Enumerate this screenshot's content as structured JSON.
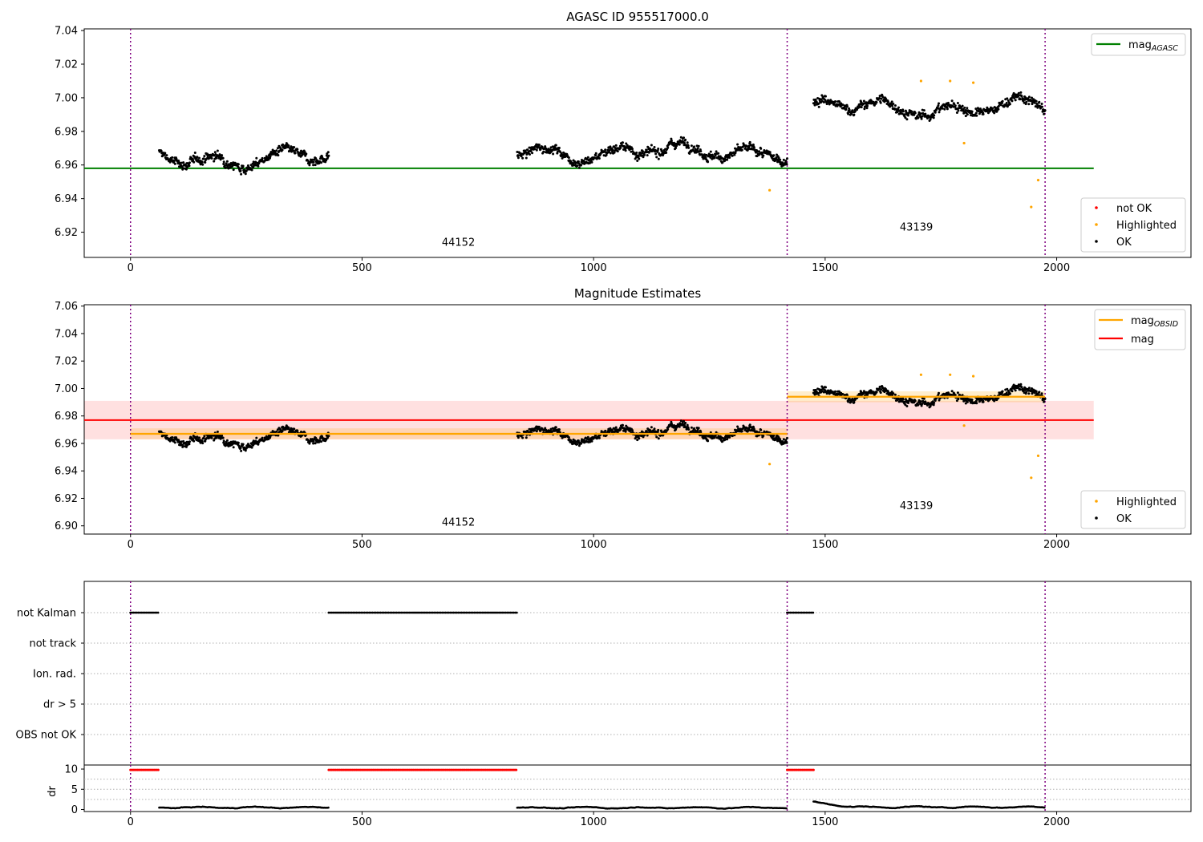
{
  "figure": {
    "title_top": "AGASC ID 955517000.0",
    "title_mid": "Magnitude Estimates"
  },
  "chart_data": [
    {
      "panel": "top",
      "type": "scatter",
      "title": "AGASC ID 955517000.0",
      "xlim": [
        -100,
        2290
      ],
      "ylim": [
        6.905,
        7.041
      ],
      "x_ticks": [
        "0",
        "500",
        "1000",
        "1500",
        "2000"
      ],
      "y_ticks": [
        "6.92",
        "6.94",
        "6.96",
        "6.98",
        "7.00",
        "7.02",
        "7.04"
      ],
      "obsid_boundaries": [
        0,
        1418,
        1975
      ],
      "annotations": [
        {
          "text": "44152",
          "x": 708,
          "y": 6.912
        },
        {
          "text": "43139",
          "x": 1697,
          "y": 6.921
        }
      ],
      "reference_lines": [
        {
          "name": "mag_AGASC",
          "y": 6.958,
          "x_range": [
            -100,
            2080
          ],
          "color": "#008000"
        }
      ],
      "segments": [
        {
          "x_range": [
            62,
            428
          ],
          "center": 6.964,
          "spread": 0.005
        },
        {
          "x_range": [
            835,
            1418
          ],
          "center": 6.968,
          "spread": 0.005
        },
        {
          "x_range": [
            1475,
            1975
          ],
          "center": 6.994,
          "spread": 0.005
        }
      ],
      "highlighted_points": [
        [
          1380,
          6.945
        ],
        [
          1707,
          7.01
        ],
        [
          1770,
          7.01
        ],
        [
          1800,
          6.973
        ],
        [
          1820,
          7.009
        ],
        [
          1945,
          6.935
        ],
        [
          1960,
          6.951
        ]
      ],
      "legend": {
        "position": "top-right",
        "upper": [
          {
            "label": "mag",
            "sub": "AGASC",
            "color": "#008000"
          }
        ],
        "lower": [
          {
            "label": "not OK",
            "color": "#ff0000"
          },
          {
            "label": "Highlighted",
            "color": "#ffa500"
          },
          {
            "label": "OK",
            "color": "#000000"
          }
        ]
      }
    },
    {
      "panel": "middle",
      "type": "scatter",
      "title": "Magnitude Estimates",
      "xlim": [
        -100,
        2290
      ],
      "ylim": [
        6.894,
        7.061
      ],
      "x_ticks": [
        "0",
        "500",
        "1000",
        "1500",
        "2000"
      ],
      "y_ticks": [
        "6.90",
        "6.92",
        "6.94",
        "6.96",
        "6.98",
        "7.00",
        "7.02",
        "7.04",
        "7.06"
      ],
      "obsid_boundaries": [
        0,
        1418,
        1975
      ],
      "annotations": [
        {
          "text": "44152",
          "x": 708,
          "y": 6.9
        },
        {
          "text": "43139",
          "x": 1697,
          "y": 6.912
        }
      ],
      "mag_band": {
        "y": 6.977,
        "lo": 6.963,
        "hi": 6.991,
        "x_range": [
          -100,
          2080
        ],
        "color": "#ff0000"
      },
      "obsid_means": [
        {
          "x_range": [
            0,
            1418
          ],
          "y": 6.967,
          "lo": 6.963,
          "hi": 6.971
        },
        {
          "x_range": [
            1418,
            1975
          ],
          "y": 6.994,
          "lo": 6.99,
          "hi": 6.998
        }
      ],
      "highlighted_points": [
        [
          1380,
          6.945
        ],
        [
          1707,
          7.01
        ],
        [
          1770,
          7.01
        ],
        [
          1800,
          6.973
        ],
        [
          1820,
          7.009
        ],
        [
          1945,
          6.935
        ],
        [
          1960,
          6.951
        ]
      ],
      "legend": {
        "position": "top-right",
        "upper": [
          {
            "label": "mag",
            "sub": "OBSID",
            "color": "#ffa500"
          },
          {
            "label": "mag",
            "sub": "",
            "color": "#ff0000"
          }
        ],
        "lower": [
          {
            "label": "Highlighted",
            "color": "#ffa500"
          },
          {
            "label": "OK",
            "color": "#000000"
          }
        ]
      }
    },
    {
      "panel": "flags",
      "type": "scatter",
      "xlim": [
        -100,
        2290
      ],
      "flag_rows": [
        "not Kalman",
        "not track",
        "Ion. rad.",
        "dr > 5",
        "OBS not OK"
      ],
      "not_kalman_ranges": [
        [
          0,
          62
        ],
        [
          428,
          835
        ],
        [
          1418,
          1475
        ]
      ],
      "obsid_boundaries": [
        0,
        1418,
        1975
      ]
    },
    {
      "panel": "dr",
      "type": "scatter",
      "ylabel": "dr",
      "xlim": [
        -100,
        2290
      ],
      "ylim": [
        -0.5,
        11
      ],
      "x_ticks": [
        "0",
        "500",
        "1000",
        "1500",
        "2000"
      ],
      "y_ticks": [
        "0",
        "5",
        "10"
      ],
      "gridlines_y": [
        2.5,
        5,
        7.5
      ],
      "red_ranges": [
        [
          0,
          62
        ],
        [
          428,
          835
        ],
        [
          1418,
          1475
        ]
      ],
      "red_value": 9.8,
      "dr_segments": [
        {
          "x_range": [
            62,
            428
          ],
          "level": 0.5
        },
        {
          "x_range": [
            835,
            1418
          ],
          "level": 0.45
        },
        {
          "x_range": [
            1475,
            1975
          ],
          "level": 0.6
        }
      ],
      "obsid_boundaries": [
        0,
        1418,
        1975
      ]
    }
  ]
}
